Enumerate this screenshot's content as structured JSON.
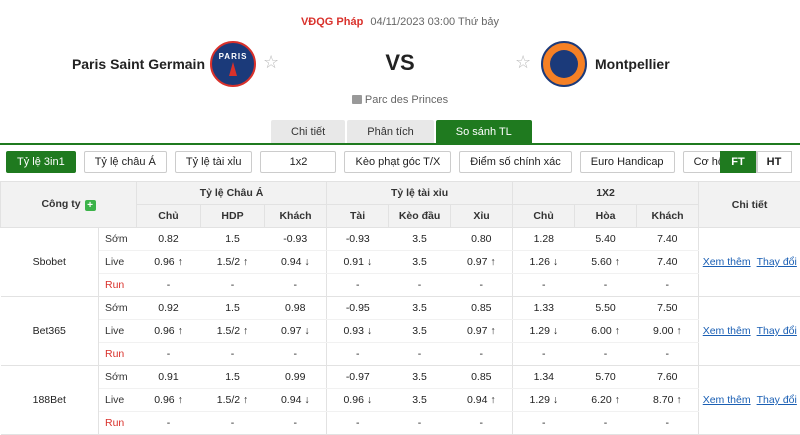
{
  "match": {
    "league": "VĐQG Pháp",
    "datetime": "04/11/2023 03:00 Thứ bảy",
    "home": "Paris Saint Germain",
    "away": "Montpellier",
    "vs": "VS",
    "venue": "Parc des Princes",
    "home_logo_text": "PARIS"
  },
  "tabs": [
    {
      "label": "Chi tiết"
    },
    {
      "label": "Phân tích"
    },
    {
      "label": "So sánh TL"
    }
  ],
  "filters": [
    {
      "label": "Tỷ lệ 3in1"
    },
    {
      "label": "Tỷ lệ châu Á"
    },
    {
      "label": "Tỷ lệ tài xỉu"
    },
    {
      "label": "1x2"
    },
    {
      "label": "Kèo phạt góc T/X"
    },
    {
      "label": "Điểm số chính xác"
    },
    {
      "label": "Euro Handicap"
    },
    {
      "label": "Cơ hội kép"
    }
  ],
  "period_toggle": {
    "ft": "FT",
    "ht": "HT"
  },
  "table": {
    "h_company": "Công ty",
    "h_asia": "Tỷ lệ Châu Á",
    "h_ou": "Tỷ lệ tài xỉu",
    "h_1x2": "1X2",
    "h_detail": "Chi tiết",
    "sub": [
      "Chủ",
      "HDP",
      "Khách",
      "Tài",
      "Kèo đầu",
      "Xỉu",
      "Chủ",
      "Hòa",
      "Khách"
    ],
    "period_labels": {
      "early": "Sớm",
      "live": "Live",
      "run": "Run"
    },
    "link_more": "Xem thêm",
    "link_change": "Thay đổi",
    "bookmakers": [
      {
        "name": "Sbobet",
        "early": [
          "0.82",
          "1.5",
          "-0.93",
          "-0.93",
          "3.5",
          "0.80",
          "1.28",
          "5.40",
          "7.40"
        ],
        "live": [
          "0.96",
          "1.5/2",
          "0.94",
          "0.91",
          "3.5",
          "0.97",
          "1.26",
          "5.60",
          "7.40"
        ],
        "run": [
          "-",
          "-",
          "-",
          "-",
          "-",
          "-",
          "-",
          "-",
          "-"
        ]
      },
      {
        "name": "Bet365",
        "early": [
          "0.92",
          "1.5",
          "0.98",
          "-0.95",
          "3.5",
          "0.85",
          "1.33",
          "5.50",
          "7.50"
        ],
        "live": [
          "0.96",
          "1.5/2",
          "0.97",
          "0.93",
          "3.5",
          "0.97",
          "1.29",
          "6.00",
          "9.00"
        ],
        "run": [
          "-",
          "-",
          "-",
          "-",
          "-",
          "-",
          "-",
          "-",
          "-"
        ]
      },
      {
        "name": "188Bet",
        "early": [
          "0.91",
          "1.5",
          "0.99",
          "-0.97",
          "3.5",
          "0.85",
          "1.34",
          "5.70",
          "7.60"
        ],
        "live": [
          "0.96",
          "1.5/2",
          "0.94",
          "0.96",
          "3.5",
          "0.94",
          "1.29",
          "6.20",
          "8.70"
        ],
        "run": [
          "-",
          "-",
          "-",
          "-",
          "-",
          "-",
          "-",
          "-",
          "-"
        ]
      }
    ]
  },
  "colors": {
    "accent": "#1f7a1f",
    "up": "#1e9a1e",
    "down": "#d9312b",
    "league": "#d9312b"
  }
}
